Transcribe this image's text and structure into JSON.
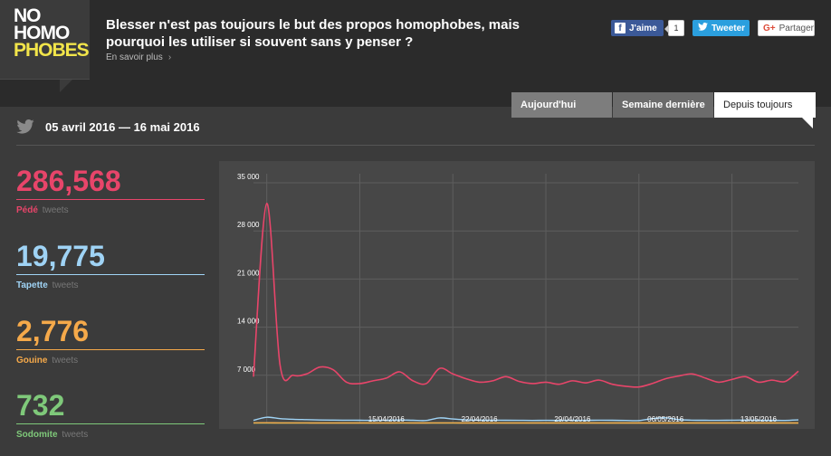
{
  "logo": {
    "line1": "NO",
    "line2": "HOMO",
    "line3": "PHOBES"
  },
  "header": {
    "headline": "Blesser n'est pas toujours le but des propos homophobes, mais pourquoi les utiliser si souvent sans y penser ?",
    "learn_more": "En savoir plus",
    "learn_more_chevron": "›"
  },
  "share": {
    "facebook_label": "J'aime",
    "facebook_count": "1",
    "twitter_label": "Tweeter",
    "google_label": "Partager"
  },
  "tabs": [
    {
      "label": "Aujourd'hui"
    },
    {
      "label": "Semaine dernière"
    },
    {
      "label": "Depuis toujours"
    }
  ],
  "date_range": "05 avril 2016 — 16 mai 2016",
  "stats": [
    {
      "value": "286,568",
      "name": "Pédé",
      "suffix": "tweets",
      "color": "#e8456a"
    },
    {
      "value": "19,775",
      "name": "Tapette",
      "suffix": "tweets",
      "color": "#9fd3f5"
    },
    {
      "value": "2,776",
      "name": "Gouine",
      "suffix": "tweets",
      "color": "#f5a94a"
    },
    {
      "value": "732",
      "name": "Sodomite",
      "suffix": "tweets",
      "color": "#7fc97a"
    }
  ],
  "chart_data": {
    "type": "line",
    "x_start": "05/04/2016",
    "x_end": "16/05/2016",
    "xtick_labels": [
      "15/04/2016",
      "22/04/2016",
      "29/04/2016",
      "06/05/2016",
      "13/05/2016"
    ],
    "ytick_labels": [
      "35 000",
      "28 000",
      "21 000",
      "14 000",
      "7 000"
    ],
    "ylim": [
      0,
      35000
    ],
    "grid": true,
    "series": [
      {
        "color": "#e8456a",
        "x": [
          "05/04",
          "06/04",
          "07/04",
          "08/04",
          "09/04",
          "10/04",
          "11/04",
          "12/04",
          "13/04",
          "14/04",
          "15/04",
          "16/04",
          "17/04",
          "18/04",
          "19/04",
          "20/04",
          "21/04",
          "22/04",
          "23/04",
          "24/04",
          "25/04",
          "26/04",
          "27/04",
          "28/04",
          "29/04",
          "30/04",
          "01/05",
          "02/05",
          "03/05",
          "04/05",
          "05/05",
          "06/05",
          "07/05",
          "08/05",
          "09/05",
          "10/05",
          "11/05",
          "12/05",
          "13/05",
          "14/05",
          "15/05",
          "16/05"
        ],
        "values": [
          6800,
          32000,
          8500,
          7000,
          7200,
          8200,
          7800,
          6000,
          5800,
          6200,
          6600,
          7500,
          6200,
          5800,
          8000,
          7200,
          6500,
          6000,
          6200,
          6800,
          6100,
          5800,
          6000,
          5700,
          6200,
          5900,
          6300,
          5700,
          5400,
          5300,
          5800,
          6500,
          6900,
          7200,
          6600,
          6000,
          6400,
          6800,
          6000,
          6300,
          6100,
          7600
        ]
      },
      {
        "color": "#9fd3f5",
        "x": [
          "05/04",
          "06/04",
          "07/04",
          "08/04",
          "09/04",
          "10/04",
          "11/04",
          "12/04",
          "13/04",
          "14/04",
          "15/04",
          "16/04",
          "17/04",
          "18/04",
          "19/04",
          "20/04",
          "21/04",
          "22/04",
          "23/04",
          "24/04",
          "25/04",
          "26/04",
          "27/04",
          "28/04",
          "29/04",
          "30/04",
          "01/05",
          "02/05",
          "03/05",
          "04/05",
          "05/05",
          "06/05",
          "07/05",
          "08/05",
          "09/05",
          "10/05",
          "11/05",
          "12/05",
          "13/05",
          "14/05",
          "15/05",
          "16/05"
        ],
        "values": [
          450,
          900,
          700,
          600,
          550,
          500,
          480,
          470,
          460,
          450,
          470,
          500,
          460,
          430,
          800,
          650,
          520,
          480,
          470,
          460,
          450,
          440,
          450,
          440,
          460,
          450,
          470,
          460,
          430,
          420,
          700,
          820,
          560,
          470,
          460,
          450,
          470,
          480,
          460,
          450,
          440,
          520
        ]
      },
      {
        "color": "#f5a94a",
        "x": [
          "05/04",
          "06/04",
          "07/04",
          "08/04",
          "09/04",
          "10/04",
          "11/04",
          "12/04",
          "13/04",
          "14/04",
          "15/04",
          "16/04",
          "17/04",
          "18/04",
          "19/04",
          "20/04",
          "21/04",
          "22/04",
          "23/04",
          "24/04",
          "25/04",
          "26/04",
          "27/04",
          "28/04",
          "29/04",
          "30/04",
          "01/05",
          "02/05",
          "03/05",
          "04/05",
          "05/05",
          "06/05",
          "07/05",
          "08/05",
          "09/05",
          "10/05",
          "11/05",
          "12/05",
          "13/05",
          "14/05",
          "15/05",
          "16/05"
        ],
        "values": [
          70,
          90,
          75,
          70,
          68,
          66,
          65,
          64,
          63,
          62,
          65,
          68,
          64,
          62,
          70,
          68,
          65,
          63,
          62,
          61,
          60,
          62,
          61,
          60,
          62,
          61,
          63,
          61,
          60,
          59,
          62,
          65,
          63,
          61,
          60,
          62,
          64,
          63,
          61,
          60,
          62,
          66
        ]
      },
      {
        "color": "#7fc97a",
        "x": [
          "05/04",
          "06/04",
          "07/04",
          "08/04",
          "09/04",
          "10/04",
          "11/04",
          "12/04",
          "13/04",
          "14/04",
          "15/04",
          "16/04",
          "17/04",
          "18/04",
          "19/04",
          "20/04",
          "21/04",
          "22/04",
          "23/04",
          "24/04",
          "25/04",
          "26/04",
          "27/04",
          "28/04",
          "29/04",
          "30/04",
          "01/05",
          "02/05",
          "03/05",
          "04/05",
          "05/05",
          "06/05",
          "07/05",
          "08/05",
          "09/05",
          "10/05",
          "11/05",
          "12/05",
          "13/05",
          "14/05",
          "15/05",
          "16/05"
        ],
        "values": [
          18,
          22,
          19,
          18,
          17,
          17,
          16,
          16,
          16,
          15,
          16,
          17,
          16,
          15,
          18,
          17,
          16,
          16,
          15,
          15,
          15,
          16,
          15,
          15,
          16,
          15,
          16,
          15,
          15,
          15,
          16,
          17,
          16,
          15,
          15,
          16,
          16,
          16,
          15,
          15,
          16,
          17
        ]
      }
    ]
  }
}
